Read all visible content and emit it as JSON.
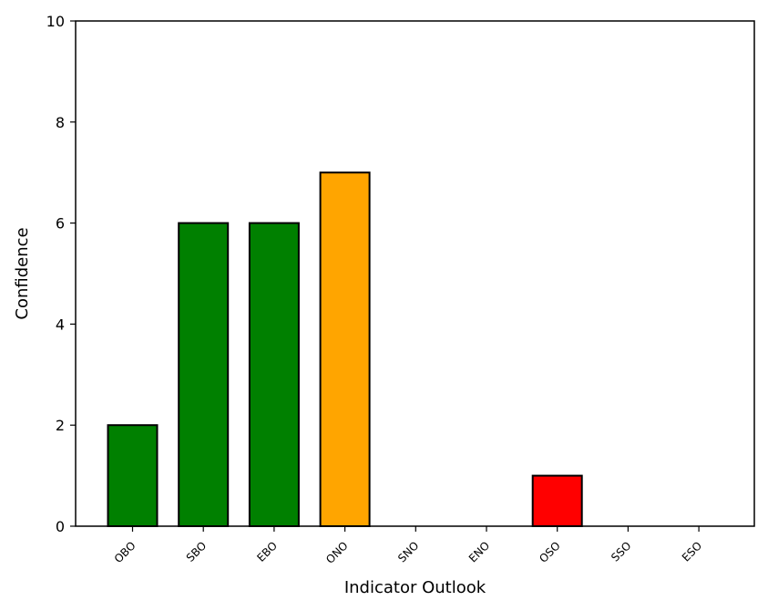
{
  "chart_data": {
    "type": "bar",
    "categories": [
      "OBO",
      "SBO",
      "EBO",
      "ONO",
      "SNO",
      "ENO",
      "OSO",
      "SSO",
      "ESO"
    ],
    "values": [
      2,
      6,
      6,
      7,
      0,
      0,
      1,
      0,
      0
    ],
    "colors": [
      "#008000",
      "#008000",
      "#008000",
      "#FFA500",
      "#008000",
      "#008000",
      "#FF0000",
      "#008000",
      "#008000"
    ],
    "edge_color": "#000000",
    "xlabel": "Indicator Outlook",
    "ylabel": "Confidence",
    "ylim": [
      0,
      10
    ],
    "yticks": [
      0,
      2,
      4,
      6,
      8,
      10
    ],
    "grid": false,
    "legend": false
  }
}
